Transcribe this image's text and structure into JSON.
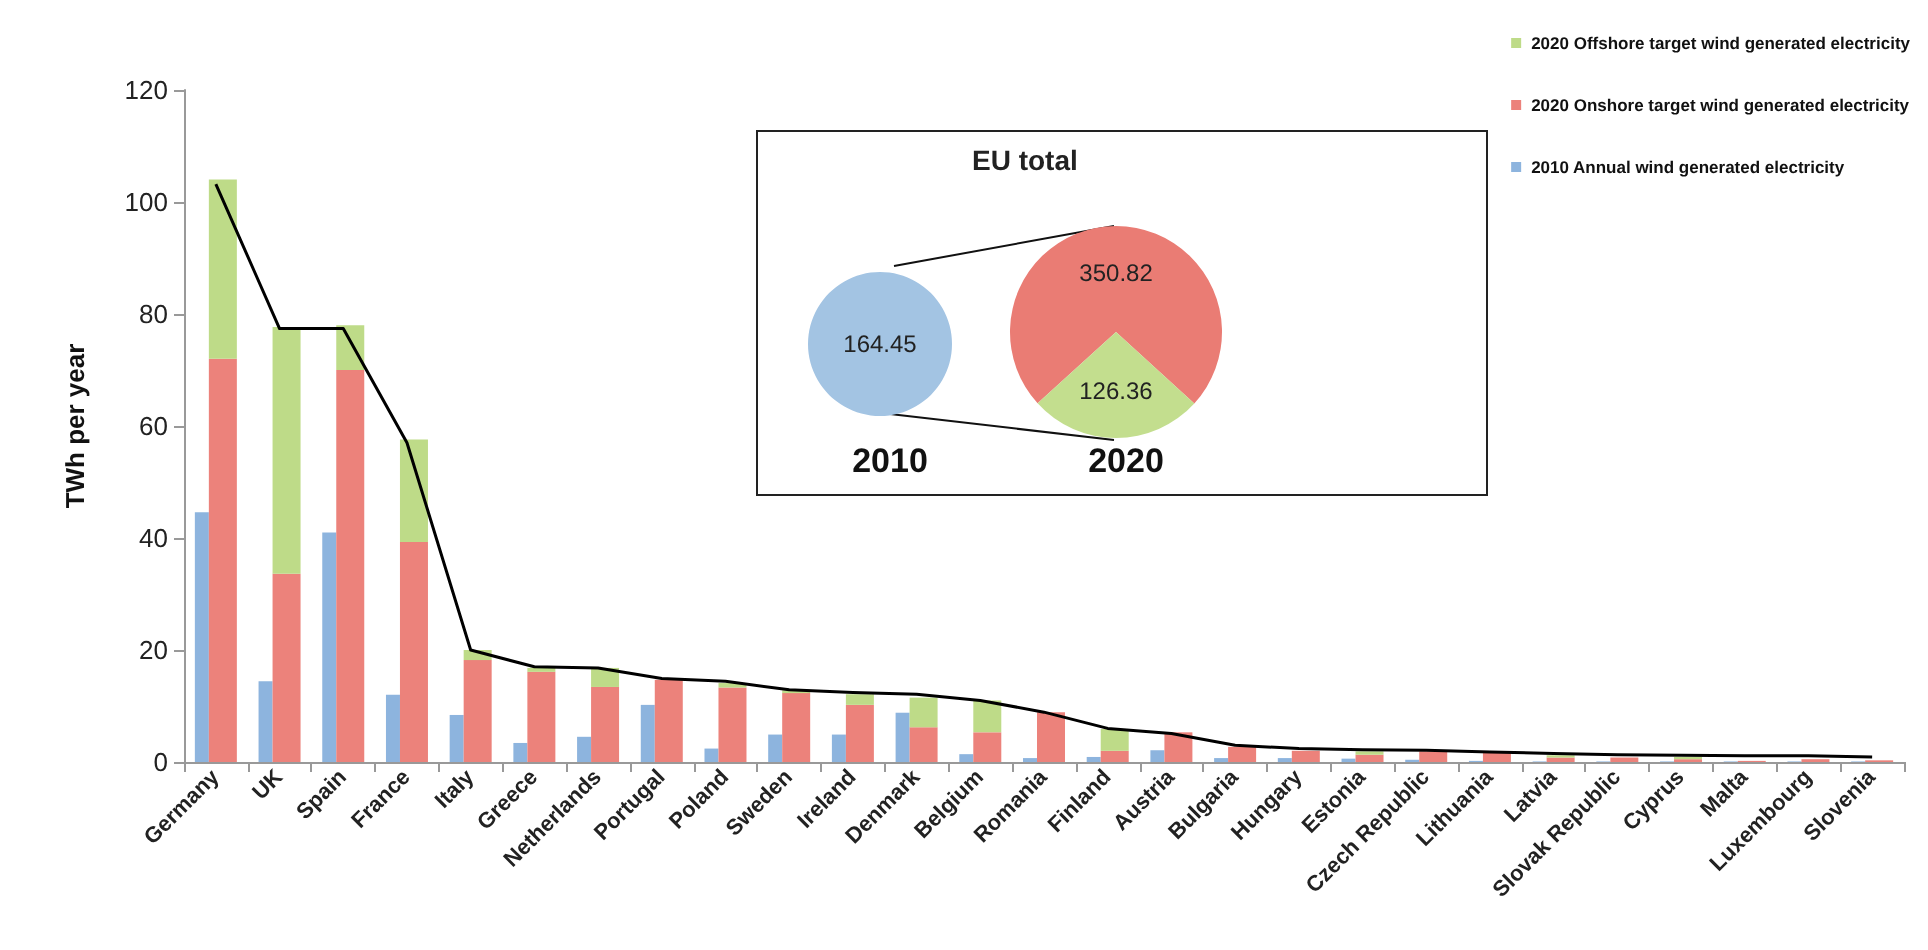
{
  "chart_data": [
    {
      "type": "bar",
      "ylabel": "TWh per year",
      "categories": [
        "Germany",
        "UK",
        "Spain",
        "France",
        "Italy",
        "Greece",
        "Netherlands",
        "Portugal",
        "Poland",
        "Sweden",
        "Ireland",
        "Denmark",
        "Belgium",
        "Romania",
        "Finland",
        "Austria",
        "Bulgaria",
        "Hungary",
        "Estonia",
        "Czech Republic",
        "Lithuania",
        "Latvia",
        "Slovak Republic",
        "Cyprus",
        "Malta",
        "Luxembourg",
        "Slovenia"
      ],
      "series": [
        {
          "name": "2010 Annual wind generated electricity",
          "color": "#8db4de",
          "values": [
            44.6,
            14.4,
            41,
            12,
            8.4,
            3.4,
            4.5,
            10.2,
            2.4,
            4.9,
            4.9,
            8.8,
            1.4,
            0.7,
            0.9,
            2.1,
            0.7,
            0.7,
            0.6,
            0.4,
            0.2,
            0.1,
            0.1,
            0.1,
            0.1,
            0.1,
            0.1
          ]
        },
        {
          "name": "2020 Onshore target wind generated electricity",
          "color": "#ec827b",
          "values": [
            72,
            33.6,
            70,
            39.3,
            18.2,
            16.1,
            13.4,
            14.7,
            13.3,
            12.3,
            10.2,
            6.2,
            5.3,
            8.9,
            2,
            5.3,
            2.7,
            2,
            1.3,
            1.9,
            1.7,
            0.8,
            0.8,
            0.5,
            0.2,
            0.5,
            0.3
          ]
        },
        {
          "name": "2020 Offshore target wind generated electricity",
          "color": "#bedb88",
          "base": [
            72,
            33.6,
            70,
            39.3,
            18.2,
            16.1,
            13.4,
            null,
            13.3,
            12.3,
            10.2,
            6.2,
            5.3,
            null,
            2,
            null,
            null,
            null,
            1.3,
            null,
            null,
            0.8,
            null,
            0.5,
            null,
            null,
            null
          ],
          "values": [
            32,
            44.1,
            8,
            18.3,
            1.8,
            0.7,
            3.4,
            null,
            0.8,
            0.5,
            1.9,
            5.3,
            5.7,
            null,
            3.9,
            null,
            null,
            null,
            0.6,
            null,
            null,
            0.4,
            null,
            0.4,
            null,
            null,
            null
          ]
        },
        {
          "type": "line",
          "color": "#000000",
          "values": [
            103.2,
            77.4,
            77.4,
            57,
            20,
            17,
            16.8,
            14.9,
            14.4,
            12.9,
            12.4,
            12.1,
            11,
            8.9,
            6,
            5.1,
            3,
            2.4,
            2.2,
            2.1,
            1.8,
            1.5,
            1.3,
            1.2,
            1.1,
            1.1,
            0.9
          ]
        }
      ],
      "ylim": [
        0,
        120
      ],
      "yticks": [
        0,
        20,
        40,
        60,
        80,
        100,
        120
      ],
      "legend": "top right",
      "marker": "none"
    },
    {
      "type": "pie",
      "title": "2010",
      "categories": [
        null
      ],
      "values": [
        164.45
      ],
      "colors": [
        "#a3c4e3"
      ],
      "data_labels": true
    },
    {
      "type": "pie",
      "title": "2020",
      "annotations": [
        "EU total"
      ],
      "categories": [
        null,
        null
      ],
      "values": [
        350.82,
        126.36
      ],
      "colors": [
        "#ea7c74",
        "#c3de8e"
      ],
      "data_labels": true
    }
  ]
}
